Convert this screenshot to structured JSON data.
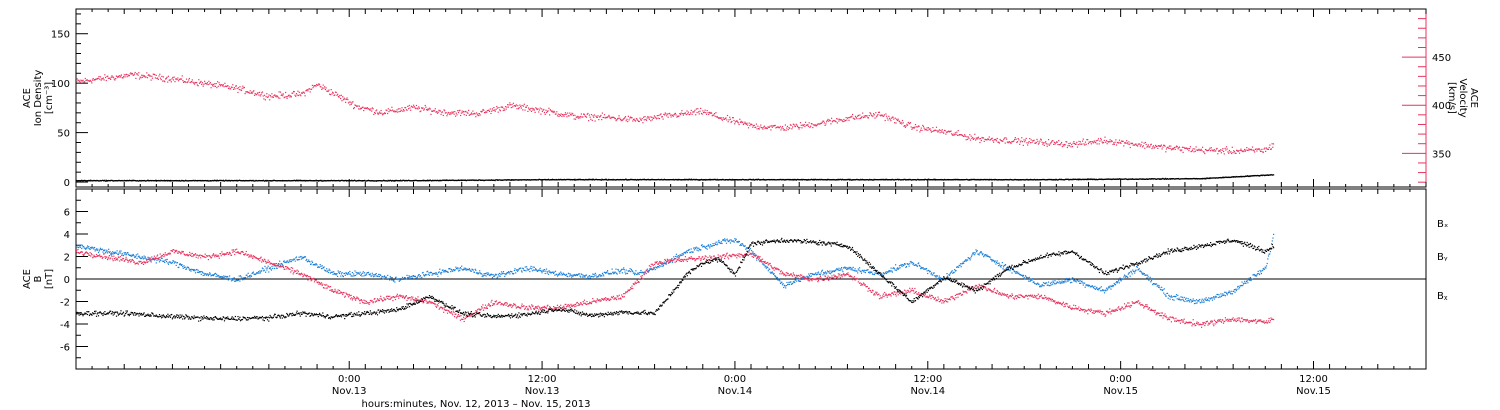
{
  "colors": {
    "black": "#000000",
    "blue": "#1a7fd8",
    "red": "#e8335e"
  },
  "xaxis": {
    "label": "hours:minutes, Nov. 12, 2013 – Nov. 15, 2013",
    "range_hours": [
      0,
      84
    ],
    "major_ticks": [
      {
        "hour": 17,
        "time": "0:00",
        "date": "Nov.13"
      },
      {
        "hour": 29,
        "time": "12:00",
        "date": "Nov.13"
      },
      {
        "hour": 41,
        "time": "0:00",
        "date": "Nov.14"
      },
      {
        "hour": 53,
        "time": "12:00",
        "date": "Nov.14"
      },
      {
        "hour": 65,
        "time": "0:00",
        "date": "Nov.15"
      },
      {
        "hour": 77,
        "time": "12:00",
        "date": "Nov.15"
      }
    ]
  },
  "chart_data": [
    {
      "type": "scatter",
      "panel": "top",
      "left_axis": {
        "label_lines": [
          "ACE",
          "Ion Density",
          "[cm⁻³]"
        ],
        "ylim": [
          -5,
          175
        ],
        "ticks": [
          "0",
          "50",
          "100",
          "150"
        ]
      },
      "right_axis": {
        "label_lines": [
          "ACE",
          "Velocity",
          "[km/s]"
        ],
        "ylim": [
          315,
          500
        ],
        "ticks": [
          "350",
          "400",
          "450"
        ]
      },
      "series": [
        {
          "axis": "left",
          "color": "black",
          "x": [
            0,
            10,
            20,
            30,
            40,
            50,
            60,
            70,
            74.5
          ],
          "y": [
            2,
            2,
            2,
            3,
            3,
            3,
            3,
            4,
            8
          ]
        },
        {
          "axis": "right",
          "color": "red",
          "x": [
            0,
            3.5,
            6,
            8,
            10,
            12,
            14,
            15,
            17.5,
            19,
            21,
            23,
            25,
            27,
            29,
            31,
            33,
            35,
            37,
            39,
            40,
            42,
            44,
            46,
            48,
            50,
            52,
            54,
            56,
            58,
            60,
            62,
            64,
            66,
            68,
            70,
            72,
            74,
            74.5
          ],
          "y": [
            425,
            432,
            428,
            423,
            418,
            410,
            412,
            422,
            399,
            393,
            398,
            393,
            392,
            400,
            395,
            389,
            388,
            385,
            390,
            394,
            388,
            379,
            377,
            381,
            387,
            391,
            378,
            373,
            366,
            364,
            362,
            360,
            364,
            360,
            356,
            354,
            353,
            354,
            360
          ]
        }
      ]
    },
    {
      "type": "scatter",
      "panel": "bottom",
      "left_axis": {
        "label_lines": [
          "ACE",
          "B",
          "[nT]"
        ],
        "ylim": [
          -8,
          8
        ],
        "ticks": [
          "6",
          "4",
          "2",
          "0",
          "-2",
          "-4",
          "-6"
        ]
      },
      "legend": [
        "Bₓ",
        "Bᵧ",
        "Bᵪ"
      ],
      "series": [
        {
          "name": "Bx",
          "color": "black",
          "x": [
            0,
            3,
            6,
            9,
            12,
            14,
            16,
            18,
            20,
            22,
            24,
            26,
            28,
            30,
            32,
            34,
            36,
            38,
            39,
            40,
            41,
            42,
            44,
            46,
            48,
            50,
            52,
            54,
            56,
            58,
            60,
            62,
            64,
            66,
            68,
            70,
            72,
            74,
            74.5
          ],
          "y": [
            -3,
            -3,
            -3.3,
            -3.5,
            -3.4,
            -3.0,
            -3.3,
            -3.0,
            -2.7,
            -1.5,
            -3.0,
            -3.3,
            -3.1,
            -2.6,
            -3.2,
            -2.9,
            -3.0,
            0.5,
            1.5,
            1.8,
            0.5,
            3.2,
            3.5,
            3.3,
            3.0,
            0.5,
            -2.0,
            0.2,
            -1.0,
            1.0,
            2.0,
            2.5,
            0.5,
            1.5,
            2.5,
            3.0,
            3.5,
            2.5,
            3.0
          ]
        },
        {
          "name": "By",
          "color": "blue",
          "x": [
            0,
            2,
            4,
            6,
            8,
            10,
            12,
            14,
            16,
            18,
            20,
            22,
            24,
            26,
            28,
            30,
            32,
            34,
            35,
            36,
            38,
            40,
            41,
            42,
            44,
            46,
            48,
            50,
            52,
            54,
            56,
            58,
            60,
            62,
            64,
            66,
            68,
            70,
            72,
            74,
            74.5
          ],
          "y": [
            3.0,
            2.5,
            2.0,
            1.5,
            0.5,
            0,
            1.0,
            2.0,
            0.5,
            0.5,
            0.0,
            0.5,
            1.0,
            0.3,
            1.0,
            0.5,
            0.3,
            0.8,
            0.5,
            1.0,
            2.5,
            3.3,
            3.5,
            2.5,
            -0.5,
            0.5,
            1.0,
            0.5,
            1.5,
            0.0,
            2.5,
            1.0,
            -0.5,
            0.0,
            -1.0,
            1.0,
            -1.5,
            -2.0,
            -1.0,
            1.0,
            4.0
          ]
        },
        {
          "name": "Bz",
          "color": "red",
          "x": [
            0,
            2,
            4,
            6,
            8,
            10,
            12,
            14,
            16,
            18,
            20,
            22,
            24,
            26,
            28,
            30,
            32,
            34,
            36,
            38,
            40,
            42,
            44,
            46,
            48,
            50,
            52,
            54,
            56,
            58,
            60,
            62,
            64,
            66,
            68,
            70,
            72,
            74,
            74.5
          ],
          "y": [
            2.5,
            2.0,
            1.5,
            2.5,
            2.0,
            2.5,
            1.5,
            0.5,
            -1.0,
            -2.0,
            -1.5,
            -2.0,
            -3.5,
            -2.0,
            -2.5,
            -2.5,
            -2.0,
            -1.5,
            1.5,
            1.8,
            2.0,
            2.3,
            0.5,
            0.0,
            0.5,
            -1.5,
            -1.0,
            -2.0,
            -0.5,
            -1.5,
            -1.5,
            -2.5,
            -3.0,
            -2.0,
            -3.5,
            -4.0,
            -3.5,
            -3.8,
            -3.5
          ]
        }
      ]
    }
  ]
}
